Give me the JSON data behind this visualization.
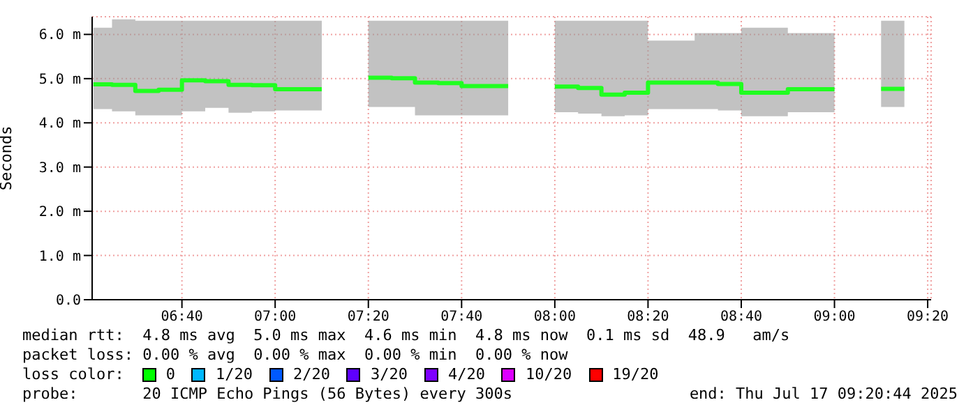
{
  "chart_data": {
    "type": "step",
    "ylabel": "Seconds",
    "x": [
      6.35,
      6.4167,
      6.5,
      6.5833,
      6.6667,
      6.75,
      6.8333,
      6.9167,
      7.0,
      7.0833,
      7.1667,
      7.25,
      7.3333,
      7.4167,
      7.5,
      7.5833,
      7.6667,
      7.75,
      7.8333,
      7.9167,
      8.0,
      8.0833,
      8.1667,
      8.25,
      8.3333,
      8.4167,
      8.5,
      8.5833,
      8.6667,
      8.75,
      8.8333,
      8.9167,
      9.0,
      9.0833,
      9.1667,
      9.25
    ],
    "series": [
      {
        "color": "#20ff20",
        "values": [
          4.87,
          4.86,
          4.72,
          4.75,
          4.96,
          4.94,
          4.86,
          4.85,
          4.76,
          4.76,
          4.76,
          null,
          5.02,
          5.01,
          4.91,
          4.9,
          4.83,
          4.83,
          4.83,
          null,
          4.82,
          4.79,
          4.64,
          4.68,
          4.91,
          4.91,
          4.91,
          4.88,
          4.68,
          4.68,
          4.76,
          4.76,
          4.76,
          null,
          4.77,
          4.77
        ],
        "lower": [
          4.31,
          4.26,
          4.17,
          4.17,
          4.26,
          4.34,
          4.23,
          4.26,
          4.28,
          4.28,
          4.28,
          null,
          4.36,
          4.36,
          4.17,
          4.17,
          4.17,
          4.17,
          4.17,
          null,
          4.24,
          4.21,
          4.15,
          4.17,
          4.31,
          4.31,
          4.31,
          4.28,
          4.15,
          4.15,
          4.24,
          4.24,
          4.24,
          null,
          4.36,
          4.36
        ],
        "upper": [
          6.15,
          6.34,
          6.31,
          6.31,
          6.31,
          6.31,
          6.31,
          6.31,
          6.31,
          6.31,
          6.31,
          null,
          6.31,
          6.31,
          6.31,
          6.31,
          6.31,
          6.31,
          6.31,
          null,
          6.31,
          6.31,
          6.31,
          6.31,
          5.86,
          5.86,
          6.03,
          6.03,
          6.15,
          6.15,
          6.03,
          6.03,
          6.03,
          null,
          6.31,
          6.31
        ]
      }
    ],
    "xlim": [
      6.3456,
      9.3456
    ],
    "xticks": [
      {
        "value": 6.6667,
        "label": "06:40"
      },
      {
        "value": 7.0,
        "label": "07:00"
      },
      {
        "value": 7.3333,
        "label": "07:20"
      },
      {
        "value": 7.6667,
        "label": "07:40"
      },
      {
        "value": 8.0,
        "label": "08:00"
      },
      {
        "value": 8.3333,
        "label": "08:20"
      },
      {
        "value": 8.6667,
        "label": "08:40"
      },
      {
        "value": 9.0,
        "label": "09:00"
      },
      {
        "value": 9.3333,
        "label": "09:20"
      }
    ],
    "ylim": [
      0,
      6.4
    ],
    "yticks": [
      {
        "value": 0,
        "label": "0.0"
      },
      {
        "value": 1,
        "label": "1.0 m"
      },
      {
        "value": 2,
        "label": "2.0 m"
      },
      {
        "value": 3,
        "label": "3.0 m"
      },
      {
        "value": 4,
        "label": "4.0 m"
      },
      {
        "value": 5,
        "label": "5.0 m"
      },
      {
        "value": 6,
        "label": "6.0 m"
      }
    ],
    "grid": true,
    "annotations": [
      "median rtt:  4.8 ms avg  5.0 ms max  4.6 ms min  4.8 ms now  0.1 ms sd  48.9   am/s",
      "packet loss: 0.00 % avg  0.00 % max  0.00 % min  0.00 % now",
      "loss color:",
      "0",
      "1/20",
      "2/20",
      "3/20",
      "4/20",
      "10/20",
      "19/20",
      "probe:       20 ICMP Echo Pings (56 Bytes) every 300s",
      "end: Thu Jul 17 09:20:44 2025"
    ]
  }
}
